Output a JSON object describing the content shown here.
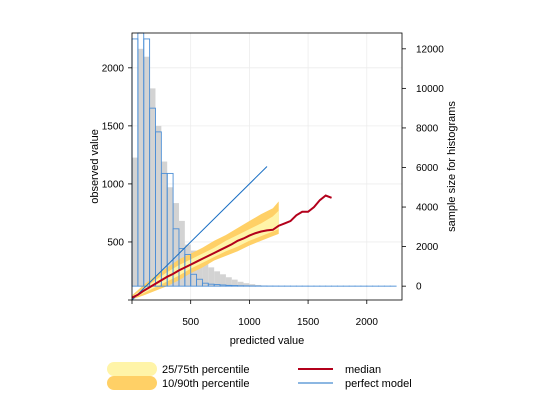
{
  "chart_data": {
    "type": "line",
    "xlabel": "predicted value",
    "ylabel": "observed value",
    "y2label": "sample size for histograms",
    "xlim": [
      0,
      2300
    ],
    "ylim": [
      0,
      2300
    ],
    "y2lim": [
      -700,
      12800
    ],
    "grid": true,
    "xticks": [
      0,
      500,
      1000,
      1500,
      2000
    ],
    "xtick_labels": [
      "",
      "500",
      "1000",
      "1500",
      "2000"
    ],
    "yticks": [
      0,
      500,
      1000,
      1500,
      2000
    ],
    "ytick_labels": [
      "",
      "500",
      "1000",
      "1500",
      "2000"
    ],
    "y2ticks": [
      0,
      2000,
      4000,
      6000,
      8000,
      10000,
      12000
    ],
    "y2tick_labels": [
      "0",
      "2000",
      "4000",
      "6000",
      "8000",
      "10000",
      "12000"
    ],
    "observed_histogram": {
      "bin_width": 50,
      "bin_starts": [
        0,
        50,
        100,
        150,
        200,
        250,
        300,
        350,
        400,
        450,
        500,
        550,
        600,
        650,
        700,
        750,
        800,
        850,
        900,
        950,
        1000,
        1050,
        1100
      ],
      "counts": [
        6500,
        12000,
        11600,
        10000,
        8100,
        6300,
        5000,
        4200,
        3300,
        2100,
        1800,
        1400,
        1200,
        950,
        750,
        600,
        450,
        330,
        220,
        150,
        100,
        60,
        30
      ],
      "color": "#d3d3d3"
    },
    "predicted_histogram": {
      "bin_width": 50,
      "bin_starts": [
        0,
        50,
        100,
        150,
        200,
        250,
        300,
        350,
        400,
        450,
        500,
        550,
        600,
        650,
        700,
        750,
        800,
        850,
        900,
        950,
        1000,
        1050,
        1100,
        1150,
        1200,
        1250,
        1300,
        1350,
        1400,
        1450,
        1500,
        1550,
        1600,
        1650,
        1700,
        1750,
        1800,
        1850,
        1900,
        1950,
        2000,
        2050,
        2100,
        2150,
        2200
      ],
      "counts": [
        12500,
        13000,
        12500,
        9000,
        7800,
        5700,
        5700,
        2900,
        1900,
        1600,
        600,
        350,
        150,
        100,
        80,
        60,
        40,
        30,
        20,
        15,
        10,
        8,
        6,
        5,
        4,
        3,
        3,
        2,
        2,
        2,
        1,
        1,
        1,
        1,
        1,
        1,
        1,
        1,
        1,
        1,
        1,
        1,
        1,
        1,
        1
      ],
      "color": "#4d8fd6"
    },
    "perfect_model": {
      "x": [
        0,
        1150
      ],
      "y": [
        0,
        1150
      ],
      "color": "#1a6fc4"
    },
    "median": {
      "x": [
        0,
        50,
        100,
        150,
        200,
        250,
        300,
        350,
        400,
        450,
        500,
        550,
        600,
        650,
        700,
        750,
        800,
        850,
        900,
        950,
        1000,
        1050,
        1100,
        1150,
        1200,
        1250,
        1300,
        1350,
        1400,
        1450,
        1500,
        1550,
        1600,
        1650,
        1700
      ],
      "y": [
        20,
        45,
        80,
        110,
        140,
        170,
        200,
        225,
        255,
        280,
        305,
        330,
        355,
        380,
        405,
        430,
        455,
        480,
        510,
        530,
        555,
        575,
        590,
        600,
        605,
        640,
        660,
        680,
        730,
        760,
        760,
        800,
        860,
        900,
        880
      ],
      "color": "#b3001b"
    },
    "band_25_75": {
      "x": [
        0,
        100,
        200,
        300,
        400,
        500,
        600,
        700,
        800,
        900,
        1000,
        1100,
        1200,
        1250
      ],
      "lower": [
        10,
        60,
        110,
        160,
        210,
        270,
        320,
        370,
        420,
        460,
        510,
        550,
        590,
        610
      ],
      "upper": [
        30,
        100,
        170,
        240,
        300,
        350,
        400,
        450,
        510,
        560,
        610,
        660,
        720,
        770
      ],
      "color": "#fff4a8"
    },
    "band_10_90": {
      "x": [
        0,
        100,
        200,
        300,
        400,
        500,
        600,
        700,
        800,
        900,
        1000,
        1100,
        1200,
        1250
      ],
      "lower": [
        5,
        40,
        80,
        120,
        170,
        230,
        280,
        340,
        380,
        420,
        470,
        510,
        550,
        570
      ],
      "upper": [
        40,
        130,
        210,
        280,
        350,
        400,
        450,
        510,
        560,
        620,
        680,
        740,
        790,
        850
      ],
      "color": "#ffd066"
    },
    "legend": {
      "placement": "bottom",
      "items": [
        {
          "label": "25/75th percentile",
          "kind": "band",
          "color": "#fff4a8"
        },
        {
          "label": "10/90th percentile",
          "kind": "band",
          "color": "#ffd066"
        },
        {
          "label": "median",
          "kind": "line",
          "color": "#b3001b"
        },
        {
          "label": "perfect model",
          "kind": "line",
          "color": "#1a6fc4"
        }
      ]
    }
  }
}
